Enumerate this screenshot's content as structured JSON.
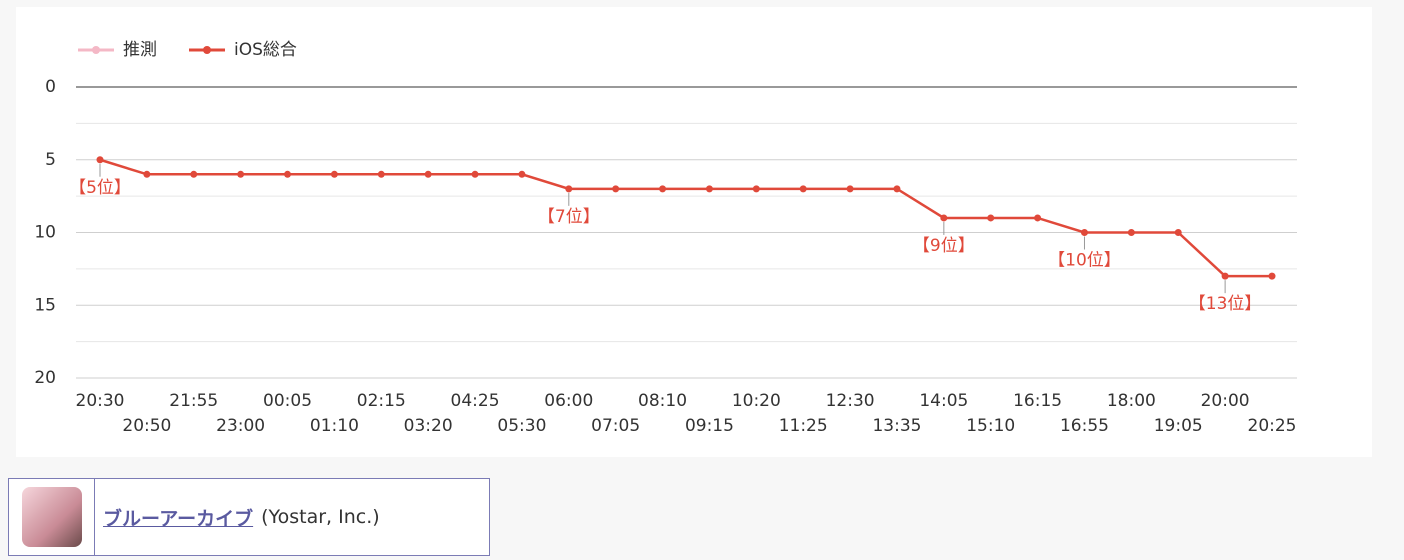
{
  "chart_data": {
    "type": "line",
    "categories": [
      "20:30",
      "20:50",
      "21:55",
      "23:00",
      "00:05",
      "01:10",
      "02:15",
      "03:20",
      "04:25",
      "05:30",
      "06:00",
      "07:05",
      "08:10",
      "09:15",
      "10:20",
      "11:25",
      "12:30",
      "13:35",
      "14:05",
      "15:10",
      "16:15",
      "16:55",
      "18:00",
      "19:05",
      "20:00",
      "20:25"
    ],
    "series": [
      {
        "name": "推測",
        "color": "#f4b8c6",
        "values": [
          null,
          null,
          null,
          null,
          null,
          null,
          null,
          null,
          null,
          null,
          null,
          null,
          null,
          null,
          null,
          null,
          null,
          null,
          null,
          null,
          null,
          null,
          null,
          null,
          null,
          null
        ]
      },
      {
        "name": "iOS総合",
        "color": "#e0493a",
        "values": [
          5,
          6,
          6,
          6,
          6,
          6,
          6,
          6,
          6,
          6,
          7,
          7,
          7,
          7,
          7,
          7,
          7,
          7,
          9,
          9,
          9,
          10,
          10,
          10,
          13,
          13
        ],
        "value_labels": [
          "【5位】",
          null,
          null,
          null,
          null,
          null,
          null,
          null,
          null,
          null,
          "【7位】",
          null,
          null,
          null,
          null,
          null,
          null,
          null,
          "【9位】",
          null,
          null,
          "【10位】",
          null,
          null,
          "【13位】",
          null
        ]
      }
    ],
    "ylim": [
      0,
      20
    ],
    "y_reversed": true,
    "yticks": [
      0,
      5,
      10,
      15,
      20
    ],
    "minor_yticks": [
      2.5,
      7.5,
      12.5,
      17.5
    ],
    "grid": true,
    "legend": "top-left"
  },
  "app": {
    "name": "ブルーアーカイブ",
    "publisher": "(Yostar, Inc.)"
  }
}
